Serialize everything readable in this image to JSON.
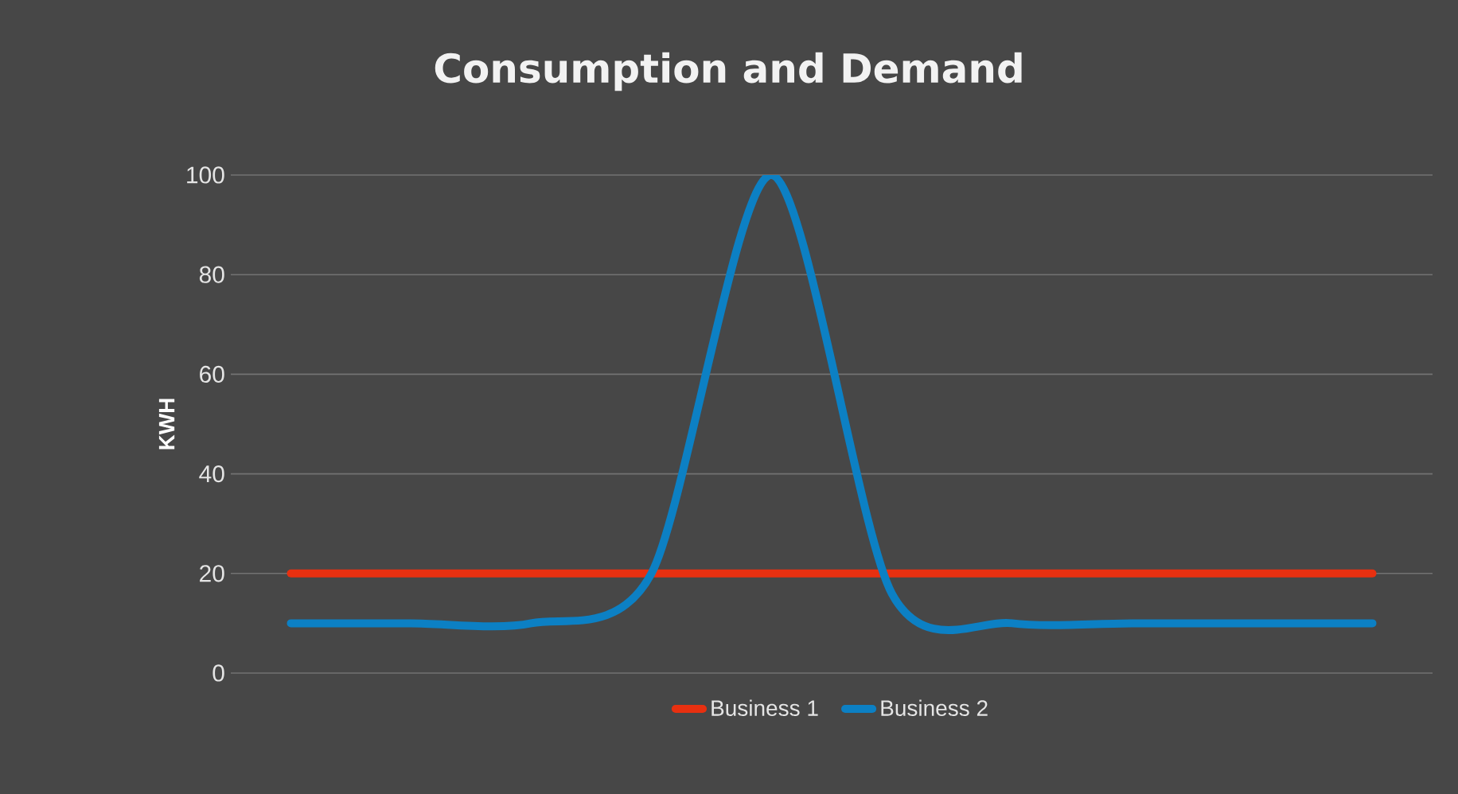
{
  "chart_data": {
    "type": "line",
    "title": "Consumption and Demand",
    "ylabel": "KWH",
    "categories": [
      null,
      null,
      null,
      null,
      null,
      null,
      null,
      null,
      null,
      null
    ],
    "series": [
      {
        "name": "Business 1",
        "color": "#e83010",
        "values": [
          20,
          20,
          20,
          20,
          20,
          20,
          20,
          20,
          20,
          20
        ]
      },
      {
        "name": "Business 2",
        "color": "#0c80c4",
        "values": [
          10,
          10,
          10,
          20,
          100,
          16,
          10,
          10,
          10,
          10
        ]
      }
    ],
    "ylim": [
      0,
      100
    ],
    "yticks": [
      0,
      20,
      40,
      60,
      80,
      100
    ],
    "grid": "y",
    "legend": "bottom",
    "marker": "none",
    "line_style": "solid"
  }
}
